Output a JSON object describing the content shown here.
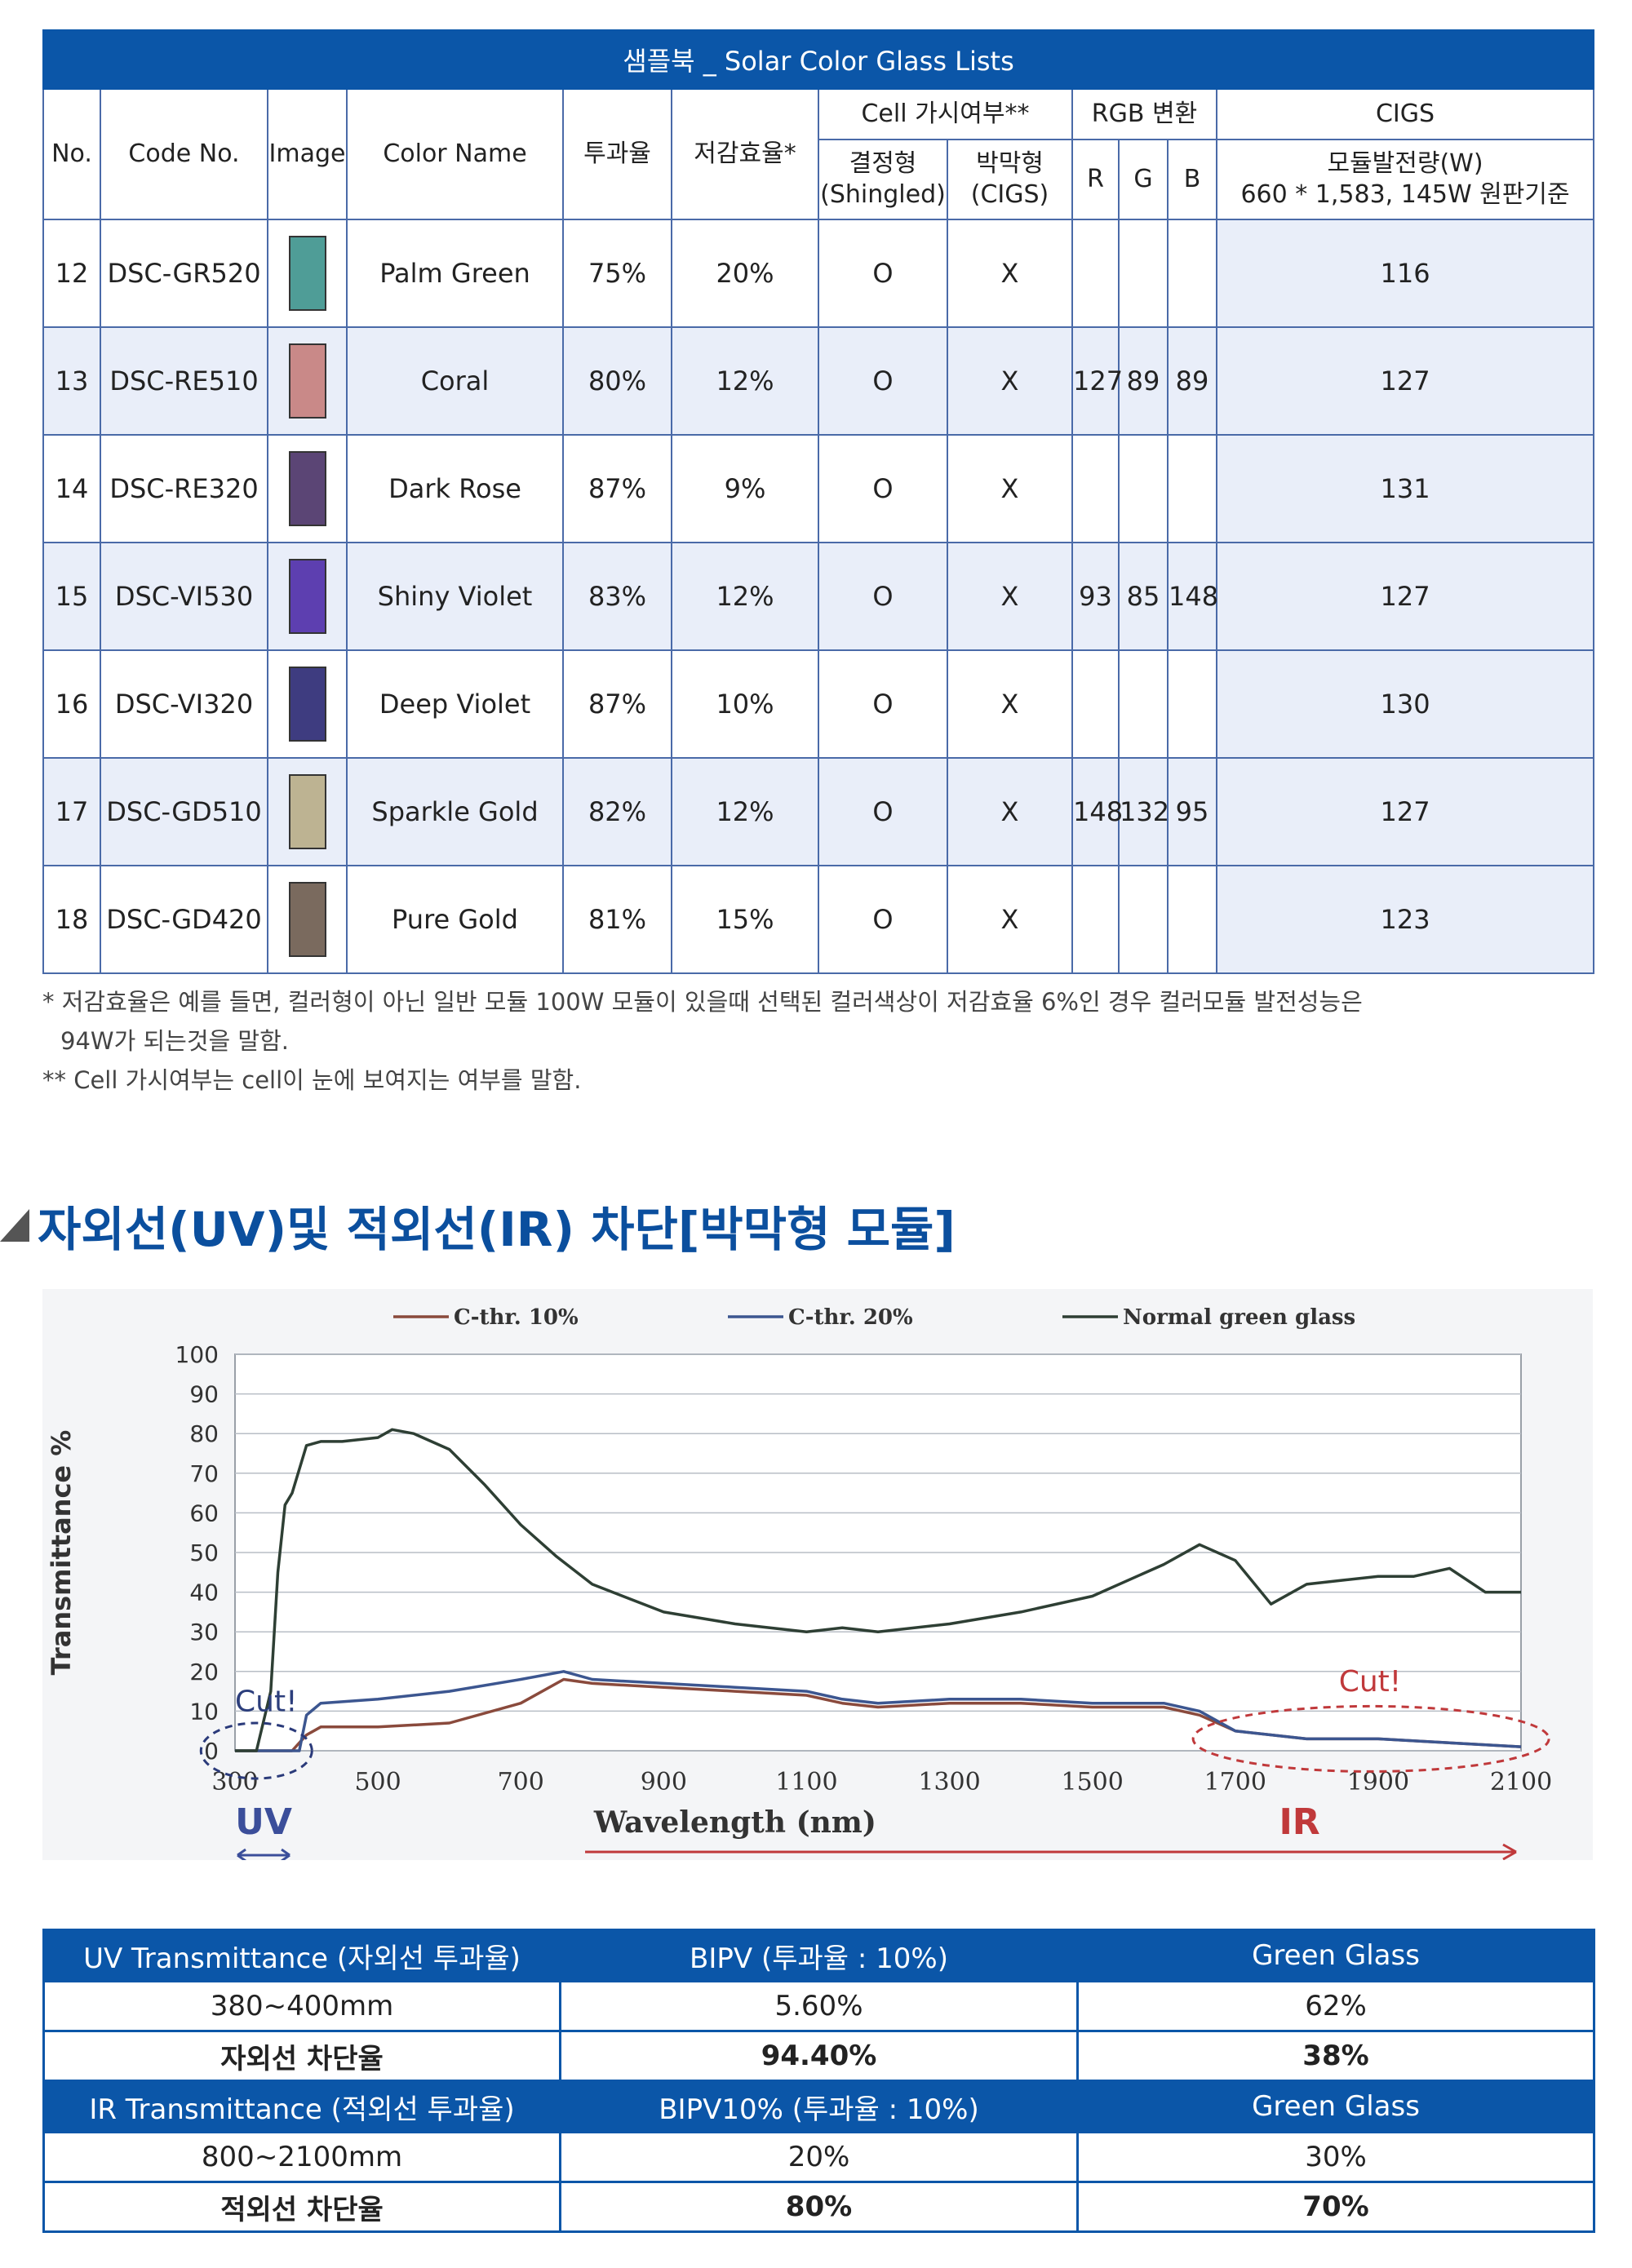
{
  "table": {
    "caption": "샘플북 _ Solar Color Glass Lists",
    "headers": {
      "no": "No.",
      "code": "Code No.",
      "image": "Image",
      "color_name": "Color Name",
      "transmittance": "투과율",
      "reduction": "저감효율*",
      "cell_visibility": "Cell 가시여부**",
      "shingled": "결정형\n(Shingled)",
      "cigs_type": "박막형\n(CIGS)",
      "rgb": "RGB 변환",
      "r": "R",
      "g": "G",
      "b": "B",
      "cigs": "CIGS",
      "cigs_sub": "모듈발전량(W)\n660 * 1,583, 145W 원판기준"
    },
    "rows": [
      {
        "no": "12",
        "code": "DSC-GR520",
        "color": "#4f9d97",
        "name": "Palm Green",
        "trans": "75%",
        "reduction": "20%",
        "shingled": "O",
        "cigs_type": "X",
        "r": "",
        "g": "",
        "b": "",
        "cigs": "116"
      },
      {
        "no": "13",
        "code": "DSC-RE510",
        "color": "#c98988",
        "name": "Coral",
        "trans": "80%",
        "reduction": "12%",
        "shingled": "O",
        "cigs_type": "X",
        "r": "127",
        "g": "89",
        "b": "89",
        "cigs": "127"
      },
      {
        "no": "14",
        "code": "DSC-RE320",
        "color": "#5b4575",
        "name": "Dark Rose",
        "trans": "87%",
        "reduction": "9%",
        "shingled": "O",
        "cigs_type": "X",
        "r": "",
        "g": "",
        "b": "",
        "cigs": "131"
      },
      {
        "no": "15",
        "code": "DSC-VI530",
        "color": "#5d3fb0",
        "name": "Shiny Violet",
        "trans": "83%",
        "reduction": "12%",
        "shingled": "O",
        "cigs_type": "X",
        "r": "93",
        "g": "85",
        "b": "148",
        "cigs": "127"
      },
      {
        "no": "16",
        "code": "DSC-VI320",
        "color": "#3e3c80",
        "name": "Deep Violet",
        "trans": "87%",
        "reduction": "10%",
        "shingled": "O",
        "cigs_type": "X",
        "r": "",
        "g": "",
        "b": "",
        "cigs": "130"
      },
      {
        "no": "17",
        "code": "DSC-GD510",
        "color": "#bdb392",
        "name": "Sparkle Gold",
        "trans": "82%",
        "reduction": "12%",
        "shingled": "O",
        "cigs_type": "X",
        "r": "148",
        "g": "132",
        "b": "95",
        "cigs": "127"
      },
      {
        "no": "18",
        "code": "DSC-GD420",
        "color": "#7a6a5e",
        "name": "Pure Gold",
        "trans": "81%",
        "reduction": "15%",
        "shingled": "O",
        "cigs_type": "X",
        "r": "",
        "g": "",
        "b": "",
        "cigs": "123"
      }
    ]
  },
  "notes": {
    "note1_line1": "* 저감효율은 예를 들면, 컬러형이 아닌 일반 모듈 100W 모듈이 있을때 선택된 컬러색상이 저감효율 6%인 경우 컬러모듈 발전성능은",
    "note1_line2": "94W가 되는것을 말함.",
    "note2": "** Cell 가시여부는 cell이 눈에 보여지는 여부를 말함."
  },
  "section_heading": "자외선(UV)및 적외선(IR) 차단[박막형 모듈]",
  "colors": {
    "header_blue": "#0b56a8",
    "grid_blue": "#4a6aa8",
    "row_alt": "#e9eef9",
    "heading_blue": "#0b4f9e",
    "series_10": "#8a4a3c",
    "series_20": "#3c5690",
    "series_green": "#2e3f34",
    "cut_blue": "#2a3a7a",
    "cut_red": "#c0393b"
  },
  "chart_data": {
    "type": "line",
    "xlabel": "Wavelength (nm)",
    "ylabel": "Transmittance %",
    "xlim": [
      300,
      2100
    ],
    "ylim": [
      0,
      100
    ],
    "x_ticks": [
      300,
      500,
      700,
      900,
      1100,
      1300,
      1500,
      1700,
      1900,
      2100
    ],
    "y_ticks": [
      0,
      10,
      20,
      30,
      40,
      50,
      60,
      70,
      80,
      90,
      100
    ],
    "grid": true,
    "legend_position": "top",
    "series": [
      {
        "name": "C-thr. 10%",
        "x": [
          300,
          380,
          400,
          420,
          500,
          600,
          700,
          760,
          800,
          900,
          1000,
          1100,
          1150,
          1200,
          1300,
          1400,
          1500,
          1600,
          1650,
          1700,
          1800,
          1900,
          2000,
          2100
        ],
        "values": [
          0,
          0,
          4,
          6,
          6,
          7,
          12,
          18,
          17,
          16,
          15,
          14,
          12,
          11,
          12,
          12,
          11,
          11,
          9,
          5,
          3,
          3,
          2,
          1
        ]
      },
      {
        "name": "C-thr. 20%",
        "x": [
          300,
          390,
          400,
          420,
          500,
          600,
          700,
          760,
          800,
          900,
          1000,
          1100,
          1150,
          1200,
          1300,
          1400,
          1500,
          1600,
          1650,
          1700,
          1800,
          1900,
          2000,
          2100
        ],
        "values": [
          0,
          0,
          9,
          12,
          13,
          15,
          18,
          20,
          18,
          17,
          16,
          15,
          13,
          12,
          13,
          13,
          12,
          12,
          10,
          5,
          3,
          3,
          2,
          1
        ]
      },
      {
        "name": "Normal green glass",
        "x": [
          300,
          330,
          350,
          360,
          370,
          380,
          400,
          420,
          450,
          500,
          520,
          550,
          600,
          650,
          700,
          750,
          800,
          900,
          1000,
          1100,
          1150,
          1200,
          1300,
          1400,
          1500,
          1600,
          1650,
          1700,
          1750,
          1800,
          1850,
          1900,
          1950,
          2000,
          2050,
          2100
        ],
        "values": [
          0,
          0,
          15,
          45,
          62,
          65,
          77,
          78,
          78,
          79,
          81,
          80,
          76,
          67,
          57,
          49,
          42,
          35,
          32,
          30,
          31,
          30,
          32,
          35,
          39,
          47,
          52,
          48,
          37,
          42,
          43,
          44,
          44,
          46,
          40,
          40
        ]
      }
    ],
    "annotations": [
      {
        "text": "Cut!",
        "region": "UV"
      },
      {
        "text": "Cut!",
        "region": "IR"
      }
    ],
    "band_labels": {
      "uv": "UV",
      "ir": "IR"
    }
  },
  "uv_table": {
    "rows": [
      {
        "c1": "UV Transmittance (자외선 투과율)",
        "c2": "BIPV (투과율 : 10%)",
        "c3": "Green Glass",
        "style": "blue"
      },
      {
        "c1": "380~400mm",
        "c2": "5.60%",
        "c3": "62%",
        "style": "plain"
      },
      {
        "c1": "자외선 차단율",
        "c2": "94.40%",
        "c3": "38%",
        "style": "bold"
      },
      {
        "c1": "IR Transmittance (적외선 투과율)",
        "c2": "BIPV10% (투과율 : 10%)",
        "c3": "Green Glass",
        "style": "blue"
      },
      {
        "c1": "800~2100mm",
        "c2": "20%",
        "c3": "30%",
        "style": "plain"
      },
      {
        "c1": "적외선 차단율",
        "c2": "80%",
        "c3": "70%",
        "style": "bold"
      }
    ]
  }
}
